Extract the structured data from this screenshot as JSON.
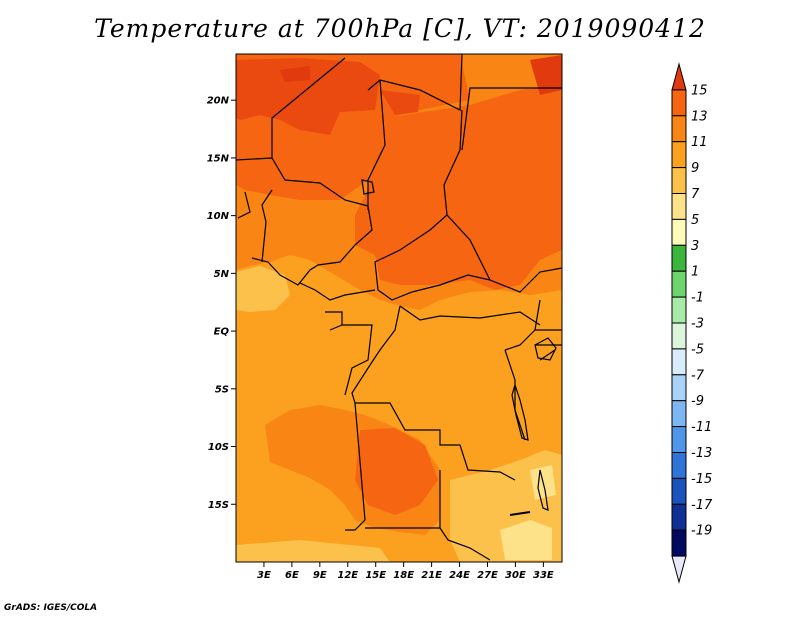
{
  "title": "Temperature at 700hPa [C], VT: 2019090412",
  "credit": "GrADS: IGES/COLA",
  "map": {
    "lon_range": [
      0,
      35
    ],
    "lat_range": [
      -20,
      24
    ],
    "lat_ticks": [
      {
        "lat": 20,
        "label": "20N"
      },
      {
        "lat": 15,
        "label": "15N"
      },
      {
        "lat": 10,
        "label": "10N"
      },
      {
        "lat": 5,
        "label": "5N"
      },
      {
        "lat": 0,
        "label": "EQ"
      },
      {
        "lat": -5,
        "label": "5S"
      },
      {
        "lat": -10,
        "label": "10S"
      },
      {
        "lat": -15,
        "label": "15S"
      }
    ],
    "lon_ticks": [
      {
        "lon": 3,
        "label": "3E"
      },
      {
        "lon": 6,
        "label": "6E"
      },
      {
        "lon": 9,
        "label": "9E"
      },
      {
        "lon": 12,
        "label": "12E"
      },
      {
        "lon": 15,
        "label": "15E"
      },
      {
        "lon": 18,
        "label": "18E"
      },
      {
        "lon": 21,
        "label": "21E"
      },
      {
        "lon": 24,
        "label": "24E"
      },
      {
        "lon": 27,
        "label": "27E"
      },
      {
        "lon": 30,
        "label": "30E"
      },
      {
        "lon": 33,
        "label": "33E"
      }
    ],
    "colors": {
      "c7_9": "#fba01f",
      "c9_11": "#f98614",
      "c11_13": "#f66511",
      "c13_15": "#ea4a10",
      "c5_7": "#fcc14b",
      "c3_5": "#fde28a"
    }
  },
  "colorbar": {
    "labels": [
      "15",
      "13",
      "11",
      "9",
      "7",
      "5",
      "3",
      "1",
      "-1",
      "-3",
      "-5",
      "-7",
      "-9",
      "-11",
      "-13",
      "-15",
      "-17",
      "-19"
    ],
    "colors": [
      "#e03a0e",
      "#f66511",
      "#f98614",
      "#fba01f",
      "#fcc14b",
      "#fde28a",
      "#fefbba",
      "#3cb53c",
      "#6ed46e",
      "#a8eaa8",
      "#dbf6dc",
      "#d9ecfc",
      "#aad3fa",
      "#7cb6f3",
      "#4f96ea",
      "#2f74d8",
      "#1b52bb",
      "#0e2f94",
      "#000a60"
    ],
    "under_color": "#e8e8fa"
  }
}
